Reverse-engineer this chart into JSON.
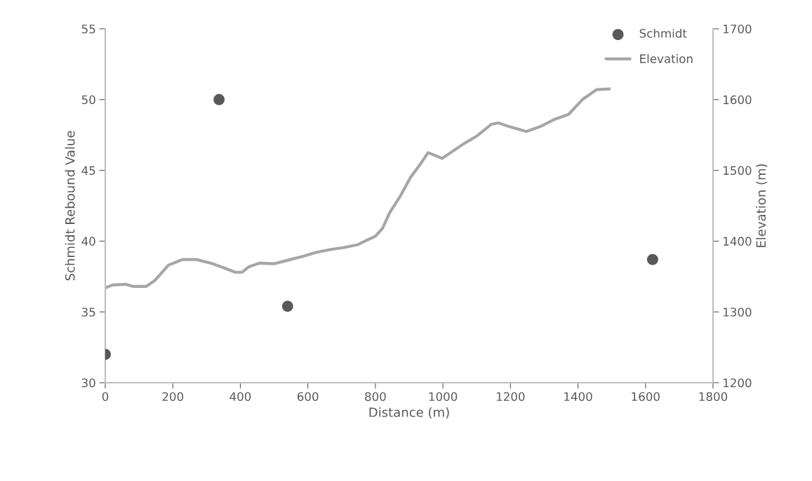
{
  "chart_data": {
    "type": "scatter",
    "xlabel": "Distance (m)",
    "ylabel": "Schmidt Rebound Value",
    "y2label": "Elevation (m)",
    "xlim": [
      0,
      1800
    ],
    "xticks": [
      0,
      200,
      400,
      600,
      800,
      1000,
      1200,
      1400,
      1600,
      1800
    ],
    "ylim": [
      30,
      55
    ],
    "yticks": [
      30,
      35,
      40,
      45,
      50,
      55
    ],
    "y2lim": [
      1200,
      1700
    ],
    "y2ticks": [
      1200,
      1300,
      1400,
      1500,
      1600,
      1700
    ],
    "grid": false,
    "legend": "top right",
    "series": [
      {
        "name": "Schmidt",
        "marker": "circle",
        "color": "#595959",
        "x": [
          0,
          337,
          540,
          1621
        ],
        "values": [
          32,
          50,
          35.4,
          38.7
        ]
      },
      {
        "name": "Elevation",
        "type": "line",
        "axis": "y2",
        "marker": "none",
        "line_style": "solid",
        "color": "#a6a6a6",
        "x": [
          0,
          21,
          62,
          83,
          121,
          146,
          187,
          229,
          270,
          312,
          353,
          385,
          405,
          426,
          457,
          499,
          540,
          582,
          624,
          665,
          707,
          748,
          769,
          800,
          821,
          842,
          873,
          904,
          935,
          956,
          998,
          1029,
          1060,
          1102,
          1143,
          1164,
          1195,
          1247,
          1289,
          1330,
          1372,
          1413,
          1455,
          1492
        ],
        "values": [
          1334,
          1338,
          1339,
          1336,
          1336,
          1344,
          1366,
          1374,
          1374,
          1369,
          1362,
          1356,
          1356,
          1364,
          1369,
          1368,
          1373,
          1378,
          1384,
          1388,
          1391,
          1395,
          1400,
          1407,
          1418,
          1440,
          1463,
          1490,
          1510,
          1525,
          1517,
          1527,
          1537,
          1549,
          1565,
          1567,
          1562,
          1555,
          1562,
          1572,
          1579,
          1600,
          1614,
          1615
        ]
      }
    ]
  }
}
